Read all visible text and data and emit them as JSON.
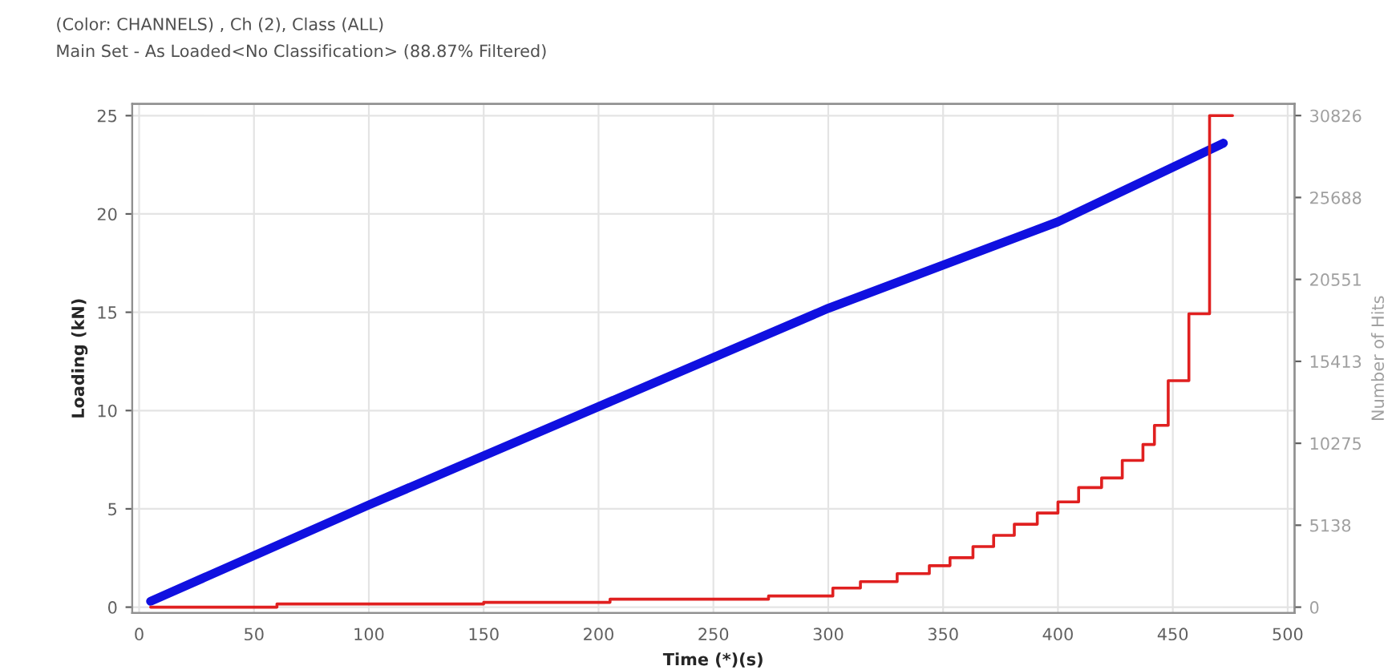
{
  "chart_data": {
    "type": "line",
    "title": "(Color: CHANNELS) , Ch (2), Class (ALL)",
    "subtitle": "Main Set - As Loaded<No Classification> (88.87% Filtered)",
    "xlabel": "Time (*)(s)",
    "ylabel": "Loading (kN)",
    "y2label": "Number of Hits",
    "xlim": [
      -3,
      503
    ],
    "xticks": [
      0,
      50,
      100,
      150,
      200,
      250,
      300,
      350,
      400,
      450,
      500
    ],
    "ylim": [
      -0.3,
      25.6
    ],
    "yticks": [
      0,
      5,
      10,
      15,
      20,
      25
    ],
    "y2lim": [
      -370,
      31560
    ],
    "y2ticks": [
      0,
      5138,
      10275,
      15413,
      20551,
      25688,
      30826
    ],
    "grid": true,
    "legend": false,
    "series": [
      {
        "color": "#1010e0",
        "x": [
          5,
          100,
          200,
          300,
          400,
          472
        ],
        "values": [
          0.3,
          5.2,
          10.2,
          15.2,
          19.6,
          23.6
        ]
      },
      {
        "type": "step",
        "axis": "y2",
        "color": "#e02020",
        "x": [
          5,
          60,
          150,
          205,
          274,
          302,
          314,
          330,
          344,
          353,
          363,
          372,
          381,
          391,
          400,
          409,
          419,
          428,
          437,
          442,
          448,
          457,
          466,
          476
        ],
        "values": [
          0,
          200,
          300,
          500,
          700,
          1200,
          1600,
          2100,
          2600,
          3100,
          3800,
          4500,
          5200,
          5900,
          6600,
          7500,
          8100,
          9200,
          10200,
          11400,
          14200,
          18400,
          30826,
          30826
        ]
      }
    ]
  }
}
